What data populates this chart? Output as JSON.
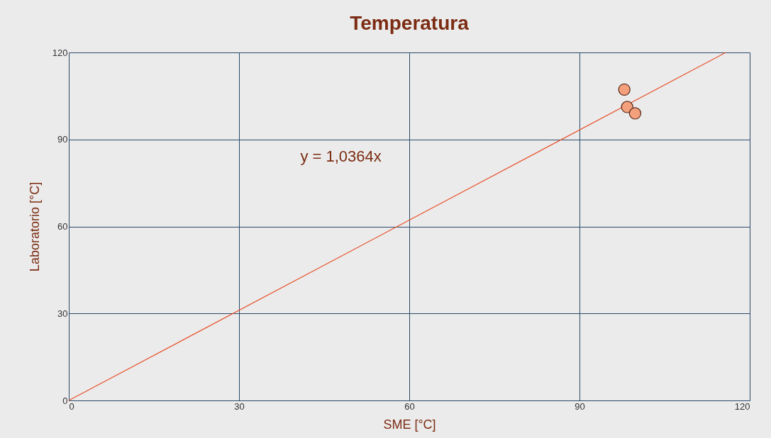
{
  "chart_data": {
    "type": "scatter",
    "title": "Temperatura",
    "xlabel": "SME [°C]",
    "ylabel": "Laboratorio [°C]",
    "series": [
      {
        "type": "scatter",
        "color": "#f4a07c",
        "marker": "circle",
        "x": [
          97.9,
          98.4,
          99.8
        ],
        "values": [
          107.2,
          101.2,
          99.0
        ]
      },
      {
        "type": "line",
        "color": "#e8502a",
        "marker": "none",
        "x": [
          0,
          115.8
        ],
        "values": [
          0,
          120
        ]
      }
    ],
    "annotations": [
      "y = 1,0364x"
    ],
    "xlim": [
      0,
      120
    ],
    "ylim": [
      0,
      120
    ],
    "xticks": [
      0,
      30,
      60,
      90,
      120
    ],
    "yticks": [
      0,
      30,
      60,
      90,
      120
    ],
    "grid": true
  }
}
